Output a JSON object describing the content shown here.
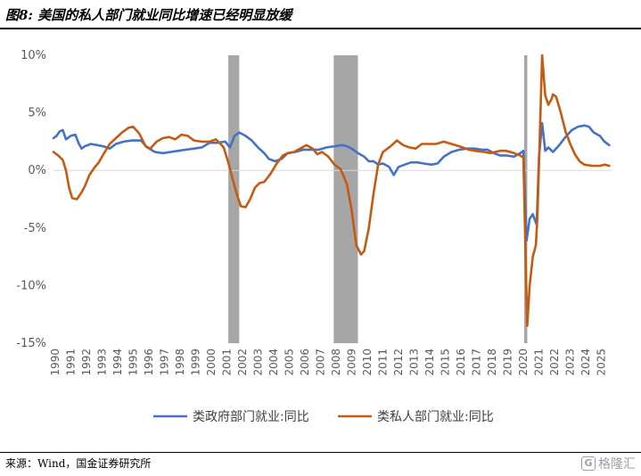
{
  "title": "图8: 美国的私人部门就业同比增速已经明显放缓",
  "source": "来源：Wind，国金证券研究所",
  "watermark": {
    "text": "格隆汇",
    "icon": "gelonghui-logo-icon"
  },
  "chart_data": {
    "type": "line",
    "title": "",
    "xlabel": "",
    "ylabel": "",
    "ylim": [
      -15,
      10
    ],
    "y_ticks": [
      10,
      5,
      0,
      -5,
      -10,
      -15
    ],
    "y_tick_labels": [
      "10%",
      "5%",
      "0%",
      "-5%",
      "-10%",
      "-15%"
    ],
    "xlim": [
      1990,
      2025.75
    ],
    "x_tick_labels": [
      "1990",
      "1991",
      "1992",
      "1993",
      "1994",
      "1995",
      "1996",
      "1997",
      "1998",
      "1999",
      "2000",
      "2001",
      "2002",
      "2003",
      "2004",
      "2005",
      "2006",
      "2007",
      "2008",
      "2009",
      "2010",
      "2011",
      "2012",
      "2013",
      "2014",
      "2015",
      "2016",
      "2017",
      "2018",
      "2019",
      "2020",
      "2021",
      "2022",
      "2023",
      "2024",
      "2025"
    ],
    "legend": "bottom",
    "grid": false,
    "recession_bands": [
      [
        2001.2,
        2001.9
      ],
      [
        2007.95,
        2009.5
      ],
      [
        2020.15,
        2020.35
      ]
    ],
    "colors": {
      "series_0": "#4472C4",
      "series_1": "#C55A11",
      "band": "#A6A6A6"
    },
    "series": [
      {
        "name": "类政府部门就业:同比",
        "points": [
          [
            1990.0,
            2.8
          ],
          [
            1990.2,
            3.0
          ],
          [
            1990.4,
            3.4
          ],
          [
            1990.6,
            3.5
          ],
          [
            1990.8,
            2.7
          ],
          [
            1991.1,
            3.0
          ],
          [
            1991.4,
            3.1
          ],
          [
            1991.6,
            2.4
          ],
          [
            1991.8,
            1.9
          ],
          [
            1992.0,
            2.1
          ],
          [
            1992.4,
            2.3
          ],
          [
            1992.8,
            2.2
          ],
          [
            1993.2,
            2.1
          ],
          [
            1993.6,
            1.9
          ],
          [
            1994.0,
            2.3
          ],
          [
            1994.5,
            2.5
          ],
          [
            1995.0,
            2.6
          ],
          [
            1995.6,
            2.6
          ],
          [
            1996.0,
            2.0
          ],
          [
            1996.5,
            1.6
          ],
          [
            1997.0,
            1.5
          ],
          [
            1997.5,
            1.6
          ],
          [
            1998.0,
            1.7
          ],
          [
            1998.5,
            1.8
          ],
          [
            1999.0,
            1.9
          ],
          [
            1999.5,
            2.0
          ],
          [
            2000.0,
            2.4
          ],
          [
            2000.5,
            2.4
          ],
          [
            2001.0,
            2.5
          ],
          [
            2001.3,
            2.0
          ],
          [
            2001.6,
            3.0
          ],
          [
            2001.9,
            3.3
          ],
          [
            2002.3,
            3.0
          ],
          [
            2002.7,
            2.6
          ],
          [
            2003.1,
            2.0
          ],
          [
            2003.5,
            1.5
          ],
          [
            2003.8,
            1.0
          ],
          [
            2004.2,
            0.8
          ],
          [
            2004.6,
            1.0
          ],
          [
            2005.0,
            1.5
          ],
          [
            2005.5,
            1.6
          ],
          [
            2006.0,
            1.8
          ],
          [
            2006.5,
            1.8
          ],
          [
            2007.0,
            1.8
          ],
          [
            2007.5,
            2.0
          ],
          [
            2008.0,
            2.1
          ],
          [
            2008.5,
            2.2
          ],
          [
            2008.8,
            2.1
          ],
          [
            2009.1,
            1.9
          ],
          [
            2009.5,
            1.5
          ],
          [
            2009.9,
            1.2
          ],
          [
            2010.2,
            0.8
          ],
          [
            2010.5,
            0.8
          ],
          [
            2010.8,
            0.5
          ],
          [
            2011.1,
            0.6
          ],
          [
            2011.5,
            0.3
          ],
          [
            2011.8,
            -0.4
          ],
          [
            2012.1,
            0.3
          ],
          [
            2012.5,
            0.5
          ],
          [
            2012.9,
            0.7
          ],
          [
            2013.3,
            0.7
          ],
          [
            2013.7,
            0.6
          ],
          [
            2014.2,
            0.5
          ],
          [
            2014.6,
            0.6
          ],
          [
            2015.0,
            1.2
          ],
          [
            2015.5,
            1.6
          ],
          [
            2016.0,
            1.8
          ],
          [
            2016.5,
            1.9
          ],
          [
            2017.0,
            1.9
          ],
          [
            2017.4,
            1.8
          ],
          [
            2017.8,
            1.8
          ],
          [
            2018.2,
            1.5
          ],
          [
            2018.6,
            1.3
          ],
          [
            2019.0,
            1.3
          ],
          [
            2019.5,
            1.2
          ],
          [
            2019.9,
            1.5
          ],
          [
            2020.1,
            1.7
          ],
          [
            2020.3,
            -6.1
          ],
          [
            2020.5,
            -4.2
          ],
          [
            2020.7,
            -3.8
          ],
          [
            2020.95,
            -4.7
          ],
          [
            2021.1,
            1.2
          ],
          [
            2021.3,
            4.1
          ],
          [
            2021.5,
            1.7
          ],
          [
            2021.7,
            2.0
          ],
          [
            2022.0,
            1.6
          ],
          [
            2022.4,
            2.2
          ],
          [
            2022.8,
            2.9
          ],
          [
            2023.2,
            3.5
          ],
          [
            2023.6,
            3.8
          ],
          [
            2024.0,
            3.9
          ],
          [
            2024.3,
            3.8
          ],
          [
            2024.6,
            3.3
          ],
          [
            2025.0,
            3.0
          ],
          [
            2025.3,
            2.5
          ],
          [
            2025.6,
            2.2
          ]
        ]
      },
      {
        "name": "类私人部门就业:同比",
        "points": [
          [
            1990.0,
            1.6
          ],
          [
            1990.3,
            1.3
          ],
          [
            1990.6,
            0.9
          ],
          [
            1990.8,
            0.0
          ],
          [
            1991.0,
            -1.5
          ],
          [
            1991.2,
            -2.4
          ],
          [
            1991.5,
            -2.5
          ],
          [
            1991.8,
            -1.9
          ],
          [
            1992.0,
            -1.4
          ],
          [
            1992.3,
            -0.4
          ],
          [
            1992.6,
            0.2
          ],
          [
            1992.9,
            0.7
          ],
          [
            1993.2,
            1.4
          ],
          [
            1993.6,
            2.3
          ],
          [
            1994.0,
            2.8
          ],
          [
            1994.4,
            3.3
          ],
          [
            1994.8,
            3.7
          ],
          [
            1995.1,
            3.8
          ],
          [
            1995.5,
            3.2
          ],
          [
            1995.9,
            2.1
          ],
          [
            1996.2,
            1.9
          ],
          [
            1996.6,
            2.5
          ],
          [
            1997.0,
            2.8
          ],
          [
            1997.4,
            2.9
          ],
          [
            1997.8,
            2.7
          ],
          [
            1998.2,
            3.1
          ],
          [
            1998.6,
            3.0
          ],
          [
            1999.0,
            2.6
          ],
          [
            1999.5,
            2.5
          ],
          [
            2000.0,
            2.5
          ],
          [
            2000.4,
            2.7
          ],
          [
            2000.7,
            2.3
          ],
          [
            2000.9,
            2.0
          ],
          [
            2001.2,
            0.7
          ],
          [
            2001.5,
            -0.9
          ],
          [
            2001.8,
            -2.3
          ],
          [
            2002.0,
            -3.1
          ],
          [
            2002.3,
            -3.2
          ],
          [
            2002.6,
            -2.5
          ],
          [
            2002.9,
            -1.5
          ],
          [
            2003.2,
            -1.1
          ],
          [
            2003.5,
            -1.0
          ],
          [
            2003.9,
            -0.3
          ],
          [
            2004.3,
            0.6
          ],
          [
            2004.7,
            1.3
          ],
          [
            2005.0,
            1.5
          ],
          [
            2005.4,
            1.6
          ],
          [
            2005.8,
            1.9
          ],
          [
            2006.2,
            2.2
          ],
          [
            2006.6,
            1.9
          ],
          [
            2006.9,
            1.4
          ],
          [
            2007.2,
            1.6
          ],
          [
            2007.6,
            1.2
          ],
          [
            2008.0,
            0.5
          ],
          [
            2008.4,
            0.1
          ],
          [
            2008.8,
            -1.2
          ],
          [
            2009.1,
            -3.5
          ],
          [
            2009.4,
            -6.5
          ],
          [
            2009.7,
            -7.3
          ],
          [
            2009.9,
            -7.0
          ],
          [
            2010.2,
            -5.0
          ],
          [
            2010.5,
            -2.0
          ],
          [
            2010.8,
            0.5
          ],
          [
            2011.1,
            1.6
          ],
          [
            2011.6,
            2.1
          ],
          [
            2012.0,
            2.6
          ],
          [
            2012.4,
            2.2
          ],
          [
            2012.8,
            2.0
          ],
          [
            2013.2,
            1.9
          ],
          [
            2013.6,
            2.3
          ],
          [
            2014.0,
            2.3
          ],
          [
            2014.5,
            2.3
          ],
          [
            2015.0,
            2.5
          ],
          [
            2015.5,
            2.3
          ],
          [
            2016.0,
            2.1
          ],
          [
            2016.6,
            1.8
          ],
          [
            2017.0,
            1.7
          ],
          [
            2017.6,
            1.6
          ],
          [
            2018.0,
            1.5
          ],
          [
            2018.6,
            1.7
          ],
          [
            2019.0,
            1.7
          ],
          [
            2019.5,
            1.5
          ],
          [
            2019.9,
            1.3
          ],
          [
            2020.1,
            1.1
          ],
          [
            2020.25,
            -8.0
          ],
          [
            2020.35,
            -13.5
          ],
          [
            2020.5,
            -10.0
          ],
          [
            2020.7,
            -7.5
          ],
          [
            2020.9,
            -6.5
          ],
          [
            2021.0,
            -4.0
          ],
          [
            2021.15,
            3.0
          ],
          [
            2021.3,
            10.0
          ],
          [
            2021.5,
            6.5
          ],
          [
            2021.7,
            5.7
          ],
          [
            2021.9,
            6.2
          ],
          [
            2022.0,
            6.6
          ],
          [
            2022.2,
            6.4
          ],
          [
            2022.5,
            5.0
          ],
          [
            2022.8,
            3.4
          ],
          [
            2023.1,
            2.3
          ],
          [
            2023.4,
            1.4
          ],
          [
            2023.7,
            0.8
          ],
          [
            2024.0,
            0.5
          ],
          [
            2024.5,
            0.4
          ],
          [
            2025.0,
            0.4
          ],
          [
            2025.3,
            0.5
          ],
          [
            2025.6,
            0.4
          ]
        ]
      }
    ]
  }
}
